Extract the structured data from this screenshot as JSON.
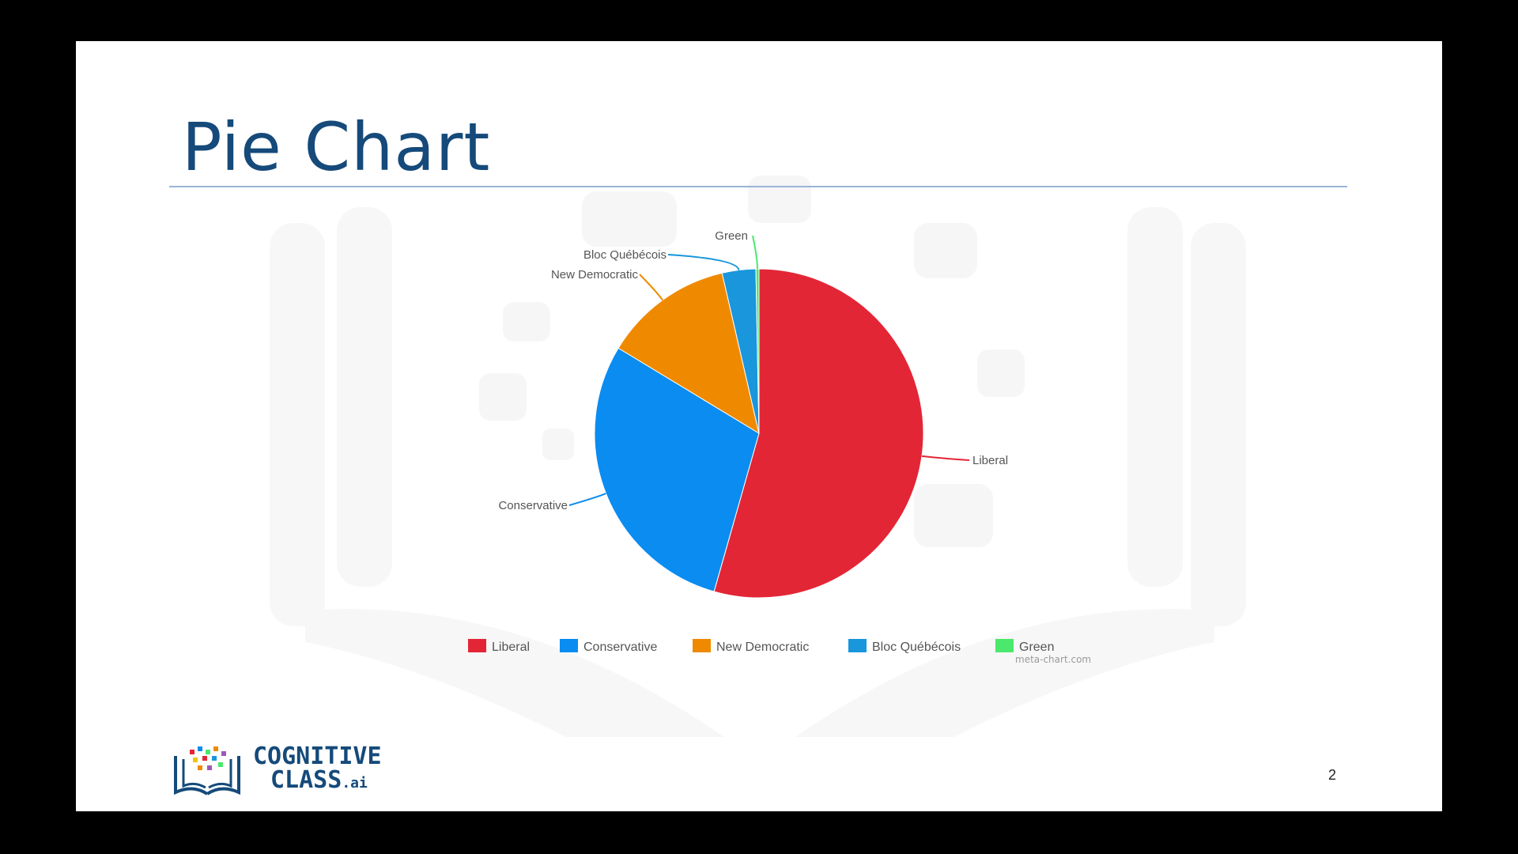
{
  "slide": {
    "title": "Pie Chart",
    "page_number": "2",
    "credit": "meta-chart.com"
  },
  "logo": {
    "line1": "COGNITIVE",
    "line2": "CLASS",
    "suffix": ".ai"
  },
  "chart_data": {
    "type": "pie",
    "title": "",
    "categories": [
      "Liberal",
      "Conservative",
      "New Democratic",
      "Bloc Québécois",
      "Green"
    ],
    "values": [
      54.3,
      29.2,
      12.7,
      3.3,
      0.3
    ],
    "colors": [
      "#e32636",
      "#0a8cf0",
      "#ef8a00",
      "#1996dc",
      "#4be86e"
    ],
    "legend_position": "bottom",
    "start": "top, clockwise"
  }
}
